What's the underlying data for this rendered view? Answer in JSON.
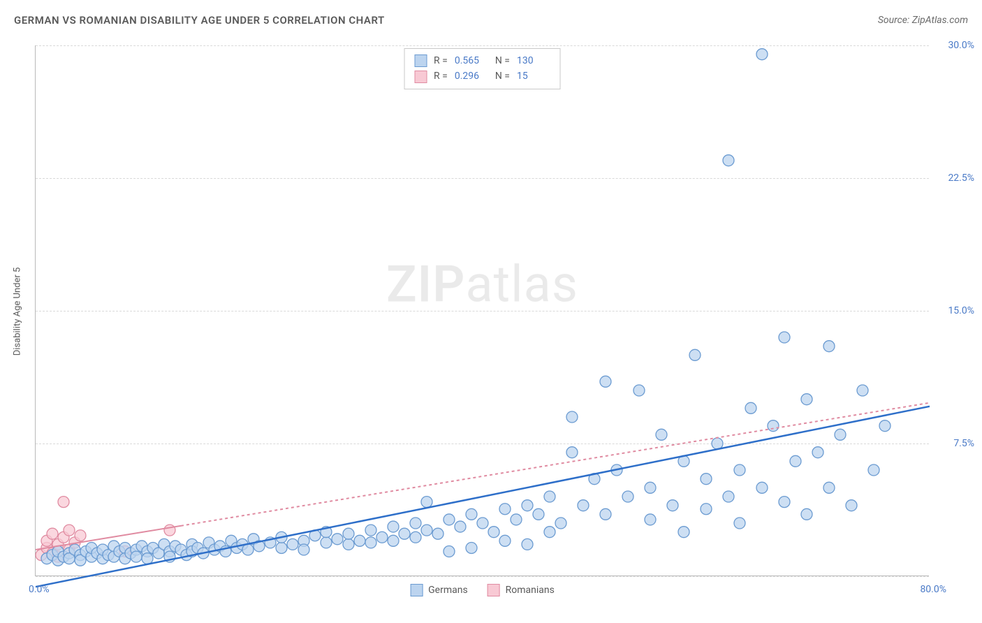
{
  "header": {
    "title": "GERMAN VS ROMANIAN DISABILITY AGE UNDER 5 CORRELATION CHART",
    "source_label": "Source: ZipAtlas.com"
  },
  "chart": {
    "type": "scatter",
    "y_axis_title": "Disability Age Under 5",
    "watermark_bold": "ZIP",
    "watermark_light": "atlas",
    "xlim": [
      0,
      80
    ],
    "ylim": [
      0,
      30
    ],
    "x_ticks": [
      {
        "v": 0,
        "label": "0.0%"
      },
      {
        "v": 80,
        "label": "80.0%"
      }
    ],
    "y_ticks": [
      {
        "v": 7.5,
        "label": "7.5%"
      },
      {
        "v": 15.0,
        "label": "15.0%"
      },
      {
        "v": 22.5,
        "label": "22.5%"
      },
      {
        "v": 30.0,
        "label": "30.0%"
      }
    ],
    "grid_y": [
      0,
      7.5,
      15.0,
      22.5,
      30.0
    ],
    "grid_color": "#d9d9d9",
    "background_color": "#ffffff",
    "marker_radius": 8,
    "marker_stroke_width": 1.3,
    "series": {
      "germans": {
        "label": "Germans",
        "fill": "#bcd4ef",
        "stroke": "#6b9bd1",
        "line_color": "#2e6fc9",
        "line_width": 2.5,
        "line_dash": "none",
        "R": "0.565",
        "N": "130",
        "regression": {
          "x0": 0,
          "y0": -0.6,
          "x1": 80,
          "y1": 9.6
        },
        "points": [
          [
            1,
            1.0
          ],
          [
            1.5,
            1.2
          ],
          [
            2,
            0.9
          ],
          [
            2,
            1.4
          ],
          [
            2.5,
            1.1
          ],
          [
            3,
            1.3
          ],
          [
            3,
            1.0
          ],
          [
            3.5,
            1.5
          ],
          [
            4,
            1.2
          ],
          [
            4,
            0.9
          ],
          [
            4.5,
            1.4
          ],
          [
            5,
            1.1
          ],
          [
            5,
            1.6
          ],
          [
            5.5,
            1.3
          ],
          [
            6,
            1.0
          ],
          [
            6,
            1.5
          ],
          [
            6.5,
            1.2
          ],
          [
            7,
            1.7
          ],
          [
            7,
            1.1
          ],
          [
            7.5,
            1.4
          ],
          [
            8,
            1.6
          ],
          [
            8,
            1.0
          ],
          [
            8.5,
            1.3
          ],
          [
            9,
            1.5
          ],
          [
            9,
            1.1
          ],
          [
            9.5,
            1.7
          ],
          [
            10,
            1.4
          ],
          [
            10,
            1.0
          ],
          [
            10.5,
            1.6
          ],
          [
            11,
            1.3
          ],
          [
            11.5,
            1.8
          ],
          [
            12,
            1.4
          ],
          [
            12,
            1.1
          ],
          [
            12.5,
            1.7
          ],
          [
            13,
            1.5
          ],
          [
            13.5,
            1.2
          ],
          [
            14,
            1.8
          ],
          [
            14,
            1.4
          ],
          [
            14.5,
            1.6
          ],
          [
            15,
            1.3
          ],
          [
            15.5,
            1.9
          ],
          [
            16,
            1.5
          ],
          [
            16.5,
            1.7
          ],
          [
            17,
            1.4
          ],
          [
            17.5,
            2.0
          ],
          [
            18,
            1.6
          ],
          [
            18.5,
            1.8
          ],
          [
            19,
            1.5
          ],
          [
            19.5,
            2.1
          ],
          [
            20,
            1.7
          ],
          [
            21,
            1.9
          ],
          [
            22,
            1.6
          ],
          [
            22,
            2.2
          ],
          [
            23,
            1.8
          ],
          [
            24,
            2.0
          ],
          [
            24,
            1.5
          ],
          [
            25,
            2.3
          ],
          [
            26,
            1.9
          ],
          [
            26,
            2.5
          ],
          [
            27,
            2.1
          ],
          [
            28,
            1.8
          ],
          [
            28,
            2.4
          ],
          [
            29,
            2.0
          ],
          [
            30,
            2.6
          ],
          [
            30,
            1.9
          ],
          [
            31,
            2.2
          ],
          [
            32,
            2.8
          ],
          [
            32,
            2.0
          ],
          [
            33,
            2.4
          ],
          [
            34,
            3.0
          ],
          [
            34,
            2.2
          ],
          [
            35,
            2.6
          ],
          [
            35,
            4.2
          ],
          [
            36,
            2.4
          ],
          [
            37,
            3.2
          ],
          [
            37,
            1.4
          ],
          [
            38,
            2.8
          ],
          [
            39,
            3.5
          ],
          [
            39,
            1.6
          ],
          [
            40,
            3.0
          ],
          [
            41,
            2.5
          ],
          [
            42,
            3.8
          ],
          [
            42,
            2.0
          ],
          [
            43,
            3.2
          ],
          [
            44,
            4.0
          ],
          [
            44,
            1.8
          ],
          [
            45,
            3.5
          ],
          [
            46,
            4.5
          ],
          [
            46,
            2.5
          ],
          [
            47,
            3.0
          ],
          [
            48,
            7.0
          ],
          [
            48,
            9.0
          ],
          [
            49,
            4.0
          ],
          [
            50,
            5.5
          ],
          [
            51,
            3.5
          ],
          [
            51,
            11.0
          ],
          [
            52,
            6.0
          ],
          [
            53,
            4.5
          ],
          [
            54,
            10.5
          ],
          [
            55,
            5.0
          ],
          [
            55,
            3.2
          ],
          [
            56,
            8.0
          ],
          [
            57,
            4.0
          ],
          [
            58,
            6.5
          ],
          [
            58,
            2.5
          ],
          [
            59,
            12.5
          ],
          [
            60,
            5.5
          ],
          [
            60,
            3.8
          ],
          [
            61,
            7.5
          ],
          [
            62,
            4.5
          ],
          [
            62,
            23.5
          ],
          [
            63,
            6.0
          ],
          [
            63,
            3.0
          ],
          [
            64,
            9.5
          ],
          [
            65,
            5.0
          ],
          [
            65,
            29.5
          ],
          [
            66,
            8.5
          ],
          [
            67,
            4.2
          ],
          [
            67,
            13.5
          ],
          [
            68,
            6.5
          ],
          [
            69,
            3.5
          ],
          [
            69,
            10.0
          ],
          [
            70,
            7.0
          ],
          [
            71,
            5.0
          ],
          [
            71,
            13.0
          ],
          [
            72,
            8.0
          ],
          [
            73,
            4.0
          ],
          [
            74,
            10.5
          ],
          [
            75,
            6.0
          ],
          [
            76,
            8.5
          ]
        ]
      },
      "romanians": {
        "label": "Romanians",
        "fill": "#f8c9d4",
        "stroke": "#e08ba1",
        "line_color": "#e08ba1",
        "line_width": 2,
        "line_dash": "4 4",
        "R": "0.296",
        "N": "15",
        "regression_solid_until": 13,
        "regression": {
          "x0": 0,
          "y0": 1.5,
          "x1": 80,
          "y1": 9.8
        },
        "points": [
          [
            0.5,
            1.2
          ],
          [
            1,
            1.6
          ],
          [
            1,
            2.0
          ],
          [
            1.5,
            1.3
          ],
          [
            1.5,
            2.4
          ],
          [
            2,
            1.8
          ],
          [
            2,
            1.1
          ],
          [
            2.5,
            2.2
          ],
          [
            2.5,
            4.2
          ],
          [
            3,
            1.5
          ],
          [
            3,
            2.6
          ],
          [
            3.5,
            1.9
          ],
          [
            4,
            2.3
          ],
          [
            8,
            1.4
          ],
          [
            12,
            2.6
          ]
        ]
      }
    }
  }
}
